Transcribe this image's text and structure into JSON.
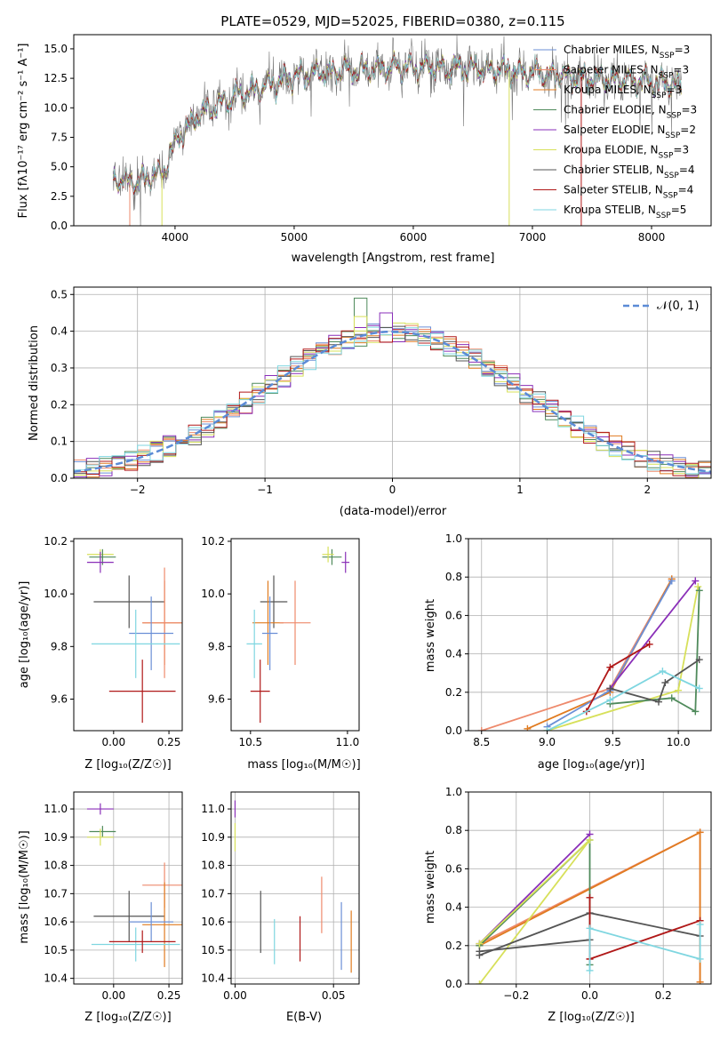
{
  "chart_data": [
    {
      "id": "spectrum",
      "type": "line",
      "title": "PLATE=0529, MJD=52025, FIBERID=0380, z=0.115",
      "xlabel": "wavelength [Angstrom, rest frame]",
      "ylabel": "Flux [fλ10⁻¹⁷ erg cm⁻² s⁻¹ A⁻¹]",
      "xlim": [
        3150,
        8500
      ],
      "ylim": [
        0,
        16.2
      ],
      "xticks": [
        4000,
        5000,
        6000,
        7000,
        8000
      ],
      "yticks": [
        0.0,
        2.5,
        5.0,
        7.5,
        10.0,
        12.5,
        15.0
      ],
      "legend_position": "right",
      "legend": [
        {
          "label": "Chabrier MILES, N_SSP=3",
          "color": "#6b8fd6"
        },
        {
          "label": "Salpeter MILES, N_SSP=3",
          "color": "#ee8a6c"
        },
        {
          "label": "Kroupa MILES, N_SSP=3",
          "color": "#e07b20"
        },
        {
          "label": "Chabrier ELODIE, N_SSP=3",
          "color": "#4f8a5b"
        },
        {
          "label": "Salpeter ELODIE, N_SSP=2",
          "color": "#8a2fb8"
        },
        {
          "label": "Kroupa ELODIE, N_SSP=3",
          "color": "#d7e05a"
        },
        {
          "label": "Chabrier STELIB, N_SSP=4",
          "color": "#555555"
        },
        {
          "label": "Salpeter STELIB, N_SSP=4",
          "color": "#b01818"
        },
        {
          "label": "Kroupa STELIB, N_SSP=5",
          "color": "#7fd6e0"
        }
      ],
      "continuum": {
        "x": [
          3500,
          3700,
          3900,
          4000,
          4200,
          4500,
          4800,
          5000,
          5200,
          5500,
          6000,
          6500,
          7000,
          7500,
          8000,
          8250
        ],
        "y": [
          3.8,
          3.9,
          4.5,
          7.0,
          9.5,
          11.0,
          12.0,
          12.6,
          13.0,
          13.2,
          13.4,
          13.3,
          13.0,
          12.5,
          12.2,
          12.0
        ]
      }
    },
    {
      "id": "residuals",
      "type": "step",
      "xlabel": "(data-model)/error",
      "ylabel": "Normed distribution",
      "xlim": [
        -2.5,
        2.5
      ],
      "ylim": [
        0,
        0.52
      ],
      "xticks": [
        -2,
        -1,
        0,
        1,
        2
      ],
      "yticks": [
        0.0,
        0.1,
        0.2,
        0.3,
        0.4,
        0.5
      ],
      "gaussian_label": "𝒩(0, 1)",
      "gaussian_color": "#5b8bd6",
      "bin_width": 0.1,
      "peak_bins": [
        {
          "x": -0.25,
          "y": 0.49
        },
        {
          "x": -0.25,
          "y": 0.44
        },
        {
          "x": -0.05,
          "y": 0.45
        }
      ]
    },
    {
      "id": "age_vs_Z",
      "type": "errorbar",
      "xlabel": "Z [log₁₀(Z/Z☉)]",
      "ylabel": "age  [log₁₀(age/yr)]",
      "xlim": [
        -0.18,
        0.31
      ],
      "ylim": [
        9.48,
        10.21
      ],
      "xticks": [
        0.0,
        0.25
      ],
      "yticks": [
        9.6,
        9.8,
        10.0,
        10.2
      ],
      "points": [
        {
          "x": -0.06,
          "y": 10.15,
          "xerr": 0.06,
          "yerr": 0.02,
          "color": "#d7e05a"
        },
        {
          "x": -0.05,
          "y": 10.14,
          "xerr": 0.06,
          "yerr": 0.03,
          "color": "#4f8a5b"
        },
        {
          "x": -0.06,
          "y": 10.12,
          "xerr": 0.06,
          "yerr": 0.04,
          "color": "#8a2fb8"
        },
        {
          "x": 0.07,
          "y": 9.97,
          "xerr": 0.16,
          "yerr": 0.1,
          "color": "#555555"
        },
        {
          "x": 0.23,
          "y": 9.89,
          "xerr": 0.1,
          "yerr": 0.16,
          "color": "#e07b20"
        },
        {
          "x": 0.23,
          "y": 9.89,
          "xerr": 0.1,
          "yerr": 0.21,
          "color": "#ee8a6c"
        },
        {
          "x": 0.17,
          "y": 9.85,
          "xerr": 0.1,
          "yerr": 0.14,
          "color": "#6b8fd6"
        },
        {
          "x": 0.1,
          "y": 9.81,
          "xerr": 0.2,
          "yerr": 0.13,
          "color": "#7fd6e0"
        },
        {
          "x": 0.13,
          "y": 9.63,
          "xerr": 0.15,
          "yerr": 0.12,
          "color": "#b01818"
        }
      ]
    },
    {
      "id": "age_vs_mass",
      "type": "errorbar",
      "xlabel": "mass [log₁₀(M/M☉)]",
      "ylabel": "",
      "xlim": [
        10.4,
        11.06
      ],
      "ylim": [
        9.48,
        10.21
      ],
      "xticks": [
        10.5,
        11.0
      ],
      "yticks": [
        9.6,
        9.8,
        10.0,
        10.2
      ],
      "points": [
        {
          "x": 10.92,
          "y": 10.14,
          "xerr": 0.05,
          "yerr": 0.03,
          "color": "#4f8a5b"
        },
        {
          "x": 10.9,
          "y": 10.15,
          "xerr": 0.03,
          "yerr": 0.03,
          "color": "#d7e05a"
        },
        {
          "x": 10.99,
          "y": 10.12,
          "xerr": 0.02,
          "yerr": 0.04,
          "color": "#8a2fb8"
        },
        {
          "x": 10.62,
          "y": 9.97,
          "xerr": 0.07,
          "yerr": 0.1,
          "color": "#555555"
        },
        {
          "x": 10.59,
          "y": 9.89,
          "xerr": 0.08,
          "yerr": 0.16,
          "color": "#e07b20"
        },
        {
          "x": 10.73,
          "y": 9.89,
          "xerr": 0.08,
          "yerr": 0.16,
          "color": "#ee8a6c"
        },
        {
          "x": 10.6,
          "y": 9.85,
          "xerr": 0.04,
          "yerr": 0.14,
          "color": "#6b8fd6"
        },
        {
          "x": 10.52,
          "y": 9.81,
          "xerr": 0.04,
          "yerr": 0.13,
          "color": "#7fd6e0"
        },
        {
          "x": 10.55,
          "y": 9.63,
          "xerr": 0.05,
          "yerr": 0.12,
          "color": "#b01818"
        }
      ]
    },
    {
      "id": "weight_vs_age",
      "type": "line",
      "xlabel": "age  [log₁₀(age/yr)]",
      "ylabel": "mass weight",
      "xlim": [
        8.4,
        10.25
      ],
      "ylim": [
        0,
        1.0
      ],
      "xticks": [
        8.5,
        9.0,
        9.5,
        10.0
      ],
      "yticks": [
        0.0,
        0.2,
        0.4,
        0.6,
        0.8,
        1.0
      ],
      "series": [
        {
          "x": [
            8.5,
            9.48,
            9.95
          ],
          "y": [
            0.0,
            0.22,
            0.79
          ],
          "color": "#ee8a6c"
        },
        {
          "x": [
            8.85,
            9.48,
            9.95
          ],
          "y": [
            0.01,
            0.2,
            0.79
          ],
          "color": "#e07b20"
        },
        {
          "x": [
            9.0,
            9.48,
            9.95
          ],
          "y": [
            0.02,
            0.21,
            0.78
          ],
          "color": "#6b8fd6"
        },
        {
          "x": [
            9.48,
            10.13
          ],
          "y": [
            0.22,
            0.78
          ],
          "color": "#8a2fb8"
        },
        {
          "x": [
            9.0,
            10.0,
            10.15
          ],
          "y": [
            0.0,
            0.21,
            0.75
          ],
          "color": "#d7e05a"
        },
        {
          "x": [
            9.48,
            9.95,
            10.13,
            10.16
          ],
          "y": [
            0.14,
            0.17,
            0.1,
            0.73
          ],
          "color": "#4f8a5b"
        },
        {
          "x": [
            9.48,
            9.85,
            9.9,
            10.16
          ],
          "y": [
            0.22,
            0.15,
            0.25,
            0.37
          ],
          "color": "#555555"
        },
        {
          "x": [
            9.3,
            9.48,
            9.78
          ],
          "y": [
            0.1,
            0.33,
            0.45
          ],
          "color": "#b01818"
        },
        {
          "x": [
            9.0,
            9.48,
            9.88,
            10.16
          ],
          "y": [
            0.0,
            0.16,
            0.31,
            0.22
          ],
          "color": "#7fd6e0"
        }
      ]
    },
    {
      "id": "mass_vs_Z",
      "type": "errorbar",
      "xlabel": "Z [log₁₀(Z/Z☉)]",
      "ylabel": "mass [log₁₀(M/M☉)]",
      "xlim": [
        -0.18,
        0.31
      ],
      "ylim": [
        10.38,
        11.06
      ],
      "xticks": [
        0.0,
        0.25
      ],
      "yticks": [
        10.4,
        10.5,
        10.6,
        10.7,
        10.8,
        10.9,
        11.0
      ],
      "points": [
        {
          "x": -0.06,
          "y": 11.0,
          "xerr": 0.06,
          "yerr": 0.02,
          "color": "#8a2fb8"
        },
        {
          "x": -0.05,
          "y": 10.92,
          "xerr": 0.06,
          "yerr": 0.02,
          "color": "#4f8a5b"
        },
        {
          "x": -0.06,
          "y": 10.9,
          "xerr": 0.06,
          "yerr": 0.03,
          "color": "#d7e05a"
        },
        {
          "x": 0.23,
          "y": 10.73,
          "xerr": 0.1,
          "yerr": 0.08,
          "color": "#ee8a6c"
        },
        {
          "x": 0.07,
          "y": 10.62,
          "xerr": 0.16,
          "yerr": 0.09,
          "color": "#555555"
        },
        {
          "x": 0.23,
          "y": 10.59,
          "xerr": 0.1,
          "yerr": 0.15,
          "color": "#e07b20"
        },
        {
          "x": 0.17,
          "y": 10.6,
          "xerr": 0.1,
          "yerr": 0.07,
          "color": "#6b8fd6"
        },
        {
          "x": 0.1,
          "y": 10.52,
          "xerr": 0.2,
          "yerr": 0.06,
          "color": "#7fd6e0"
        },
        {
          "x": 0.13,
          "y": 10.53,
          "xerr": 0.15,
          "yerr": 0.04,
          "color": "#b01818"
        }
      ]
    },
    {
      "id": "mass_vs_ebv",
      "type": "errorbar",
      "xlabel": "E(B-V)",
      "ylabel": "",
      "xlim": [
        -0.002,
        0.063
      ],
      "ylim": [
        10.38,
        11.06
      ],
      "xticks": [
        0.0,
        0.05
      ],
      "yticks": [
        10.4,
        10.5,
        10.6,
        10.7,
        10.8,
        10.9,
        11.0
      ],
      "points": [
        {
          "x": 0.0,
          "y": 11.0,
          "xerr": 0,
          "yerr": 0.03,
          "color": "#8a2fb8"
        },
        {
          "x": 0.0,
          "y": 10.9,
          "xerr": 0,
          "yerr": 0.05,
          "color": "#d7e05a"
        },
        {
          "x": 0.013,
          "y": 10.6,
          "xerr": 0,
          "yerr": 0.11,
          "color": "#555555"
        },
        {
          "x": 0.02,
          "y": 10.53,
          "xerr": 0,
          "yerr": 0.08,
          "color": "#7fd6e0"
        },
        {
          "x": 0.033,
          "y": 10.54,
          "xerr": 0,
          "yerr": 0.08,
          "color": "#b01818"
        },
        {
          "x": 0.044,
          "y": 10.66,
          "xerr": 0,
          "yerr": 0.1,
          "color": "#ee8a6c"
        },
        {
          "x": 0.054,
          "y": 10.55,
          "xerr": 0,
          "yerr": 0.12,
          "color": "#6b8fd6"
        },
        {
          "x": 0.059,
          "y": 10.53,
          "xerr": 0,
          "yerr": 0.11,
          "color": "#e07b20"
        }
      ]
    },
    {
      "id": "weight_vs_Z",
      "type": "line",
      "xlabel": "Z [log₁₀(Z/Z☉)]",
      "ylabel": "mass weight",
      "xlim": [
        -0.33,
        0.33
      ],
      "ylim": [
        0,
        1.0
      ],
      "xticks": [
        -0.2,
        0.0,
        0.2
      ],
      "yticks": [
        0.0,
        0.2,
        0.4,
        0.6,
        0.8,
        1.0
      ],
      "series": [
        {
          "x": [
            -0.3,
            0.3,
            0.3
          ],
          "y": [
            0.21,
            0.79,
            0.01
          ],
          "color": "#ee8a6c"
        },
        {
          "x": [
            -0.3,
            0.3,
            0.3
          ],
          "y": [
            0.2,
            0.79,
            0.01
          ],
          "color": "#e07b20"
        },
        {
          "x": [
            -0.3,
            0.0
          ],
          "y": [
            0.21,
            0.78
          ],
          "color": "#8a2fb8"
        },
        {
          "x": [
            -0.3,
            0.0,
            0.0
          ],
          "y": [
            0.2,
            0.75,
            0.1
          ],
          "color": "#4f8a5b"
        },
        {
          "x": [
            -0.3,
            0.0,
            -0.3
          ],
          "y": [
            0.0,
            0.75,
            0.21
          ],
          "color": "#d7e05a"
        },
        {
          "x": [
            -0.3,
            0.0,
            0.3
          ],
          "y": [
            0.15,
            0.37,
            0.25
          ],
          "color": "#555555"
        },
        {
          "x": [
            -0.3,
            0.0
          ],
          "y": [
            0.17,
            0.23
          ],
          "color": "#555555"
        },
        {
          "x": [
            0.0,
            0.3
          ],
          "y": [
            0.13,
            0.33
          ],
          "color": "#b01818"
        },
        {
          "x": [
            0.0,
            0.0
          ],
          "y": [
            0.45,
            0.13
          ],
          "color": "#b01818"
        },
        {
          "x": [
            0.0,
            0.0,
            0.3,
            0.3
          ],
          "y": [
            0.07,
            0.29,
            0.13,
            0.31
          ],
          "color": "#7fd6e0"
        }
      ]
    }
  ]
}
